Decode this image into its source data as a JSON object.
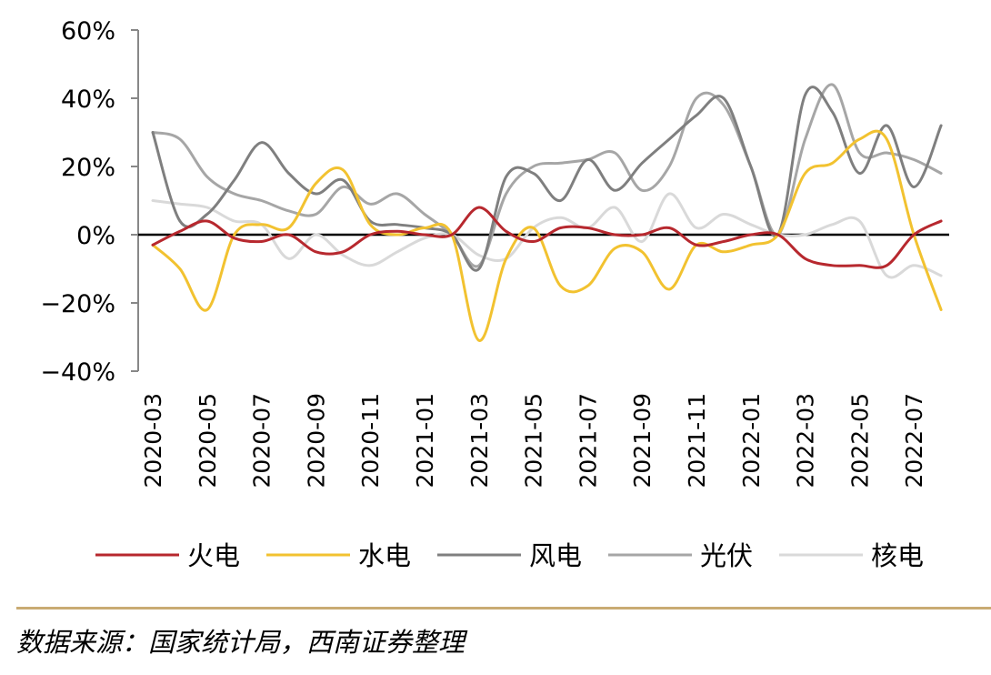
{
  "chart_data": {
    "type": "line",
    "x": [
      "2020-03",
      "2020-04",
      "2020-05",
      "2020-06",
      "2020-07",
      "2020-08",
      "2020-09",
      "2020-10",
      "2020-11",
      "2020-12",
      "2021-01",
      "2021-02",
      "2021-03",
      "2021-04",
      "2021-05",
      "2021-06",
      "2021-07",
      "2021-08",
      "2021-09",
      "2021-10",
      "2021-11",
      "2021-12",
      "2022-01",
      "2022-02",
      "2022-03",
      "2022-04",
      "2022-05",
      "2022-06",
      "2022-07",
      "2022-08"
    ],
    "xtick_labels": [
      "2020-03",
      "2020-05",
      "2020-07",
      "2020-09",
      "2020-11",
      "2021-01",
      "2021-03",
      "2021-05",
      "2021-07",
      "2021-09",
      "2021-11",
      "2022-01",
      "2022-03",
      "2022-05",
      "2022-07"
    ],
    "ylim": [
      -40,
      60
    ],
    "yticks": [
      -40,
      -20,
      0,
      20,
      40,
      60
    ],
    "ytick_labels": [
      "−40%",
      "−20%",
      "0%",
      "20%",
      "40%",
      "60%"
    ],
    "xlabel": "",
    "ylabel": "",
    "legend_position": "bottom",
    "series": [
      {
        "name": "火电",
        "color": "#b7282e",
        "values": [
          -3,
          1,
          4,
          -1,
          -2,
          0,
          -5,
          -5,
          0,
          1,
          0,
          0,
          8,
          1,
          -2,
          2,
          2,
          0,
          0,
          2,
          -3,
          -2,
          0,
          0,
          -7,
          -9,
          -9,
          -9,
          0,
          4
        ]
      },
      {
        "name": "水电",
        "color": "#f2c230",
        "values": [
          -3,
          -10,
          -22,
          0,
          3,
          2,
          15,
          19,
          3,
          0,
          2,
          0,
          -31,
          -7,
          2,
          -15,
          -15,
          -4,
          -5,
          -16,
          -3,
          -5,
          -3,
          0,
          18,
          21,
          28,
          28,
          0,
          -22
        ]
      },
      {
        "name": "风电",
        "color": "#7f7f7f",
        "values": [
          30,
          4,
          6,
          16,
          27,
          18,
          12,
          16,
          4,
          3,
          2,
          0,
          -10,
          17,
          18,
          10,
          22,
          13,
          21,
          28,
          35,
          40,
          20,
          0,
          41,
          36,
          18,
          32,
          14,
          32
        ]
      },
      {
        "name": "光伏",
        "color": "#a6a6a6",
        "values": [
          30,
          28,
          17,
          12,
          10,
          7,
          6,
          14,
          9,
          12,
          6,
          0,
          -9,
          12,
          20,
          21,
          22,
          24,
          13,
          20,
          40,
          38,
          20,
          0,
          28,
          44,
          24,
          24,
          22,
          18
        ]
      },
      {
        "name": "核电",
        "color": "#d9d9d9",
        "values": [
          10,
          9,
          8,
          4,
          3,
          -7,
          0,
          -6,
          -9,
          -5,
          -1,
          0,
          -6,
          -7,
          2,
          5,
          2,
          8,
          -2,
          12,
          2,
          6,
          3,
          0,
          0,
          3,
          4,
          -12,
          -9,
          -12
        ]
      }
    ]
  },
  "source": "数据来源：国家统计局，西南证券整理"
}
